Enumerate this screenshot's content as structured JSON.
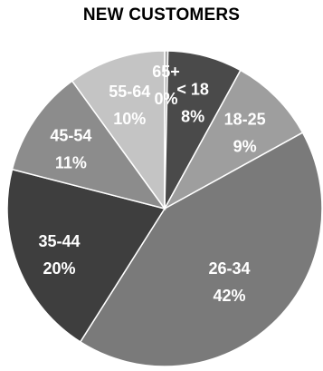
{
  "chart_data": {
    "type": "pie",
    "title": "NEW CUSTOMERS",
    "categories": [
      "< 18",
      "18-25",
      "26-34",
      "35-44",
      "45-54",
      "55-64",
      "65+"
    ],
    "values": [
      8,
      9,
      42,
      20,
      11,
      10,
      0
    ],
    "value_labels": [
      "8%",
      "9%",
      "42%",
      "20%",
      "11%",
      "10%",
      "0%"
    ],
    "colors": [
      "#4a4a4a",
      "#9e9e9e",
      "#7a7a7a",
      "#3e3e3e",
      "#8c8c8c",
      "#c4c4c4",
      "#a8a8a8"
    ],
    "start_angle_deg": 0,
    "direction": "clockwise"
  }
}
